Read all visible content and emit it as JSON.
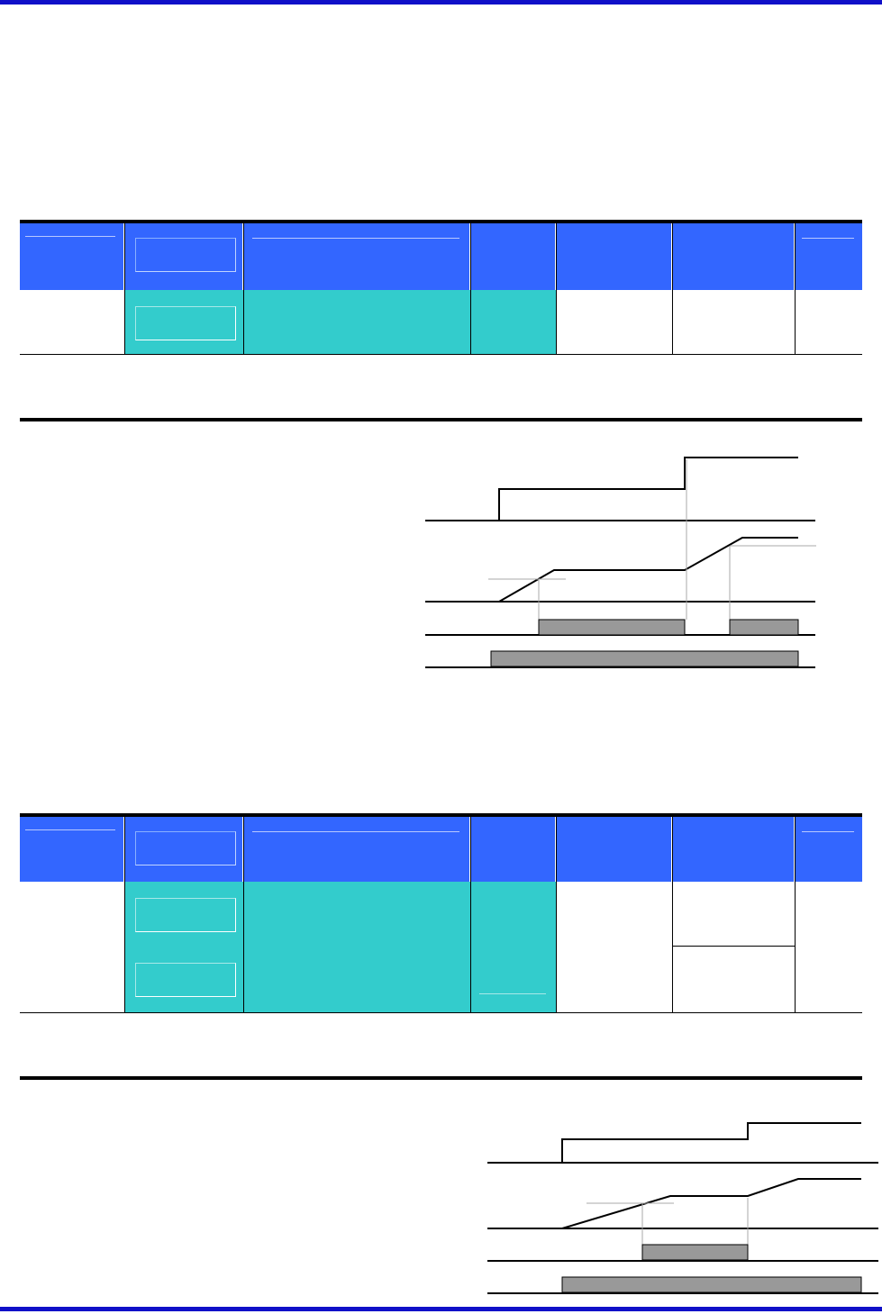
{
  "colors": {
    "header_blue": "#3366ff",
    "teal": "#33cccc",
    "frame_blue": "#1010c8",
    "bar_gray": "#999999"
  },
  "icons": []
}
